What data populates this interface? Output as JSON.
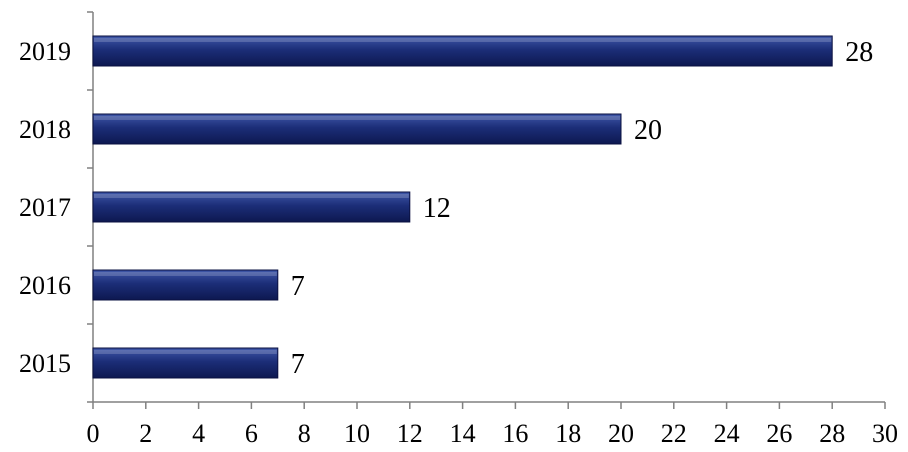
{
  "chart_data": {
    "type": "bar",
    "orientation": "horizontal",
    "categories": [
      "2015",
      "2016",
      "2017",
      "2018",
      "2019"
    ],
    "values": [
      7,
      7,
      12,
      20,
      28
    ],
    "xlim": [
      0,
      30
    ],
    "x_ticks": [
      0,
      2,
      4,
      6,
      8,
      10,
      12,
      14,
      16,
      18,
      20,
      22,
      24,
      26,
      28,
      30
    ],
    "grid": false,
    "legend": "none",
    "data_labels": true,
    "colors": {
      "bar_top": "#3f57a8",
      "bar_mid": "#1c2e78",
      "bar_bottom": "#0d1850",
      "bar_stroke": "#0a1040",
      "axis": "#808080"
    }
  }
}
